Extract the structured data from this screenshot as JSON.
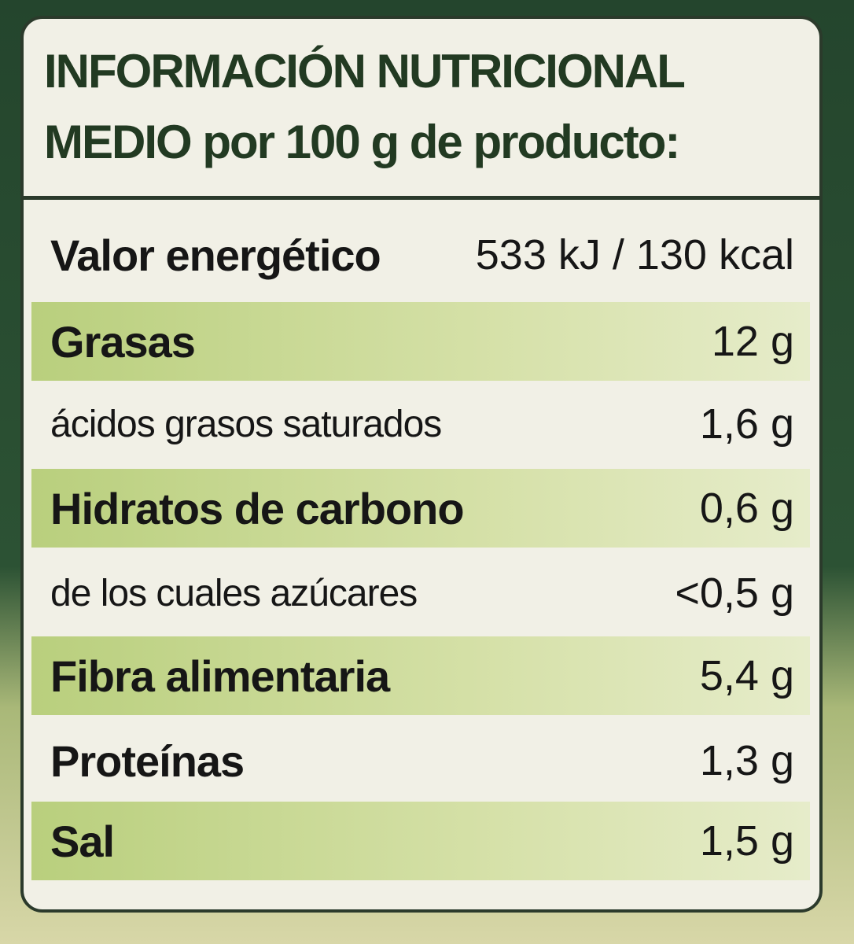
{
  "header": {
    "title": "INFORMACIÓN NUTRICIONAL",
    "subtitle": "MEDIO por 100 g de producto:"
  },
  "table": {
    "rows": [
      [
        "Valor energético",
        "533 kJ / 130 kcal"
      ],
      [
        "Grasas",
        "12 g"
      ],
      [
        "ácidos grasos saturados",
        "1,6 g"
      ],
      [
        "Hidratos de carbono",
        "0,6 g"
      ],
      [
        "de los cuales azúcares",
        "<0,5 g"
      ],
      [
        "Fibra alimentaria",
        "5,4 g"
      ],
      [
        "Proteínas",
        "1,3 g"
      ],
      [
        "Sal",
        "1,5 g"
      ]
    ]
  }
}
